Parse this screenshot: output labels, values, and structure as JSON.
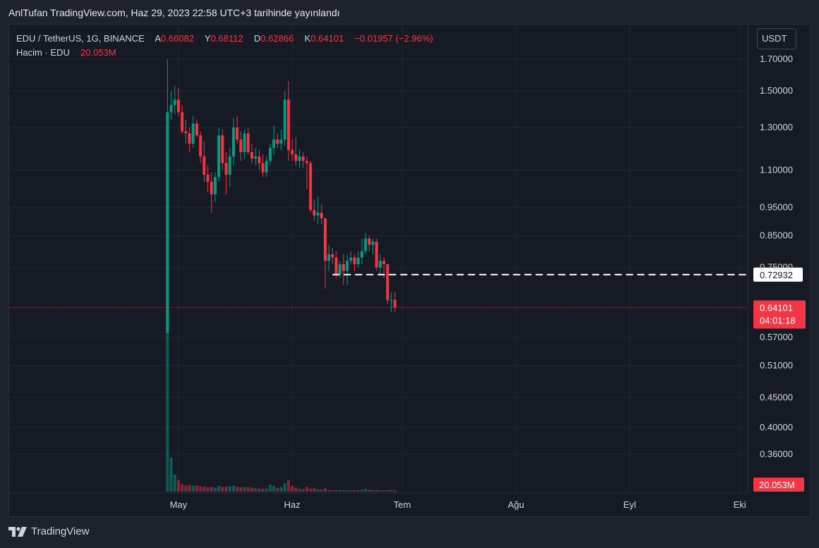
{
  "header": {
    "publish_line": "AnlTufan TradingView.com, Haz 29, 2023 22:58 UTC+3 tarihinde yayınlandı"
  },
  "legend": {
    "symbol": "EDU / TetherUS, 1G, BINANCE",
    "o_label": "A",
    "o_value": "0.66082",
    "h_label": "Y",
    "h_value": "0.68112",
    "l_label": "D",
    "l_value": "0.62866",
    "c_label": "K",
    "c_value": "0.64101",
    "change": "−0.01957 (−2.96%)",
    "volume_label": "Hacim · EDU",
    "volume_value": "20.053M"
  },
  "currency": "USDT",
  "footer": {
    "brand": "TradingView"
  },
  "colors": {
    "up": "#089981",
    "down": "#f23645",
    "background": "#161a25",
    "grid": "#232632",
    "text": "#d1d4dc"
  },
  "chart_data": {
    "type": "candlestick",
    "symbol": "EDU / TetherUS",
    "interval": "1G",
    "exchange": "BINANCE",
    "y_scale": "log",
    "y_ticks": [
      "1.70000",
      "1.50000",
      "1.30000",
      "1.10000",
      "0.95000",
      "0.85000",
      "0.75000",
      "0.57000",
      "0.51000",
      "0.45000",
      "0.40000",
      "0.36000"
    ],
    "x_ticks": [
      "May",
      "Haz",
      "Tem",
      "Ağu",
      "Eyl",
      "Eki"
    ],
    "x_tick_dates": [
      "2023-05-01",
      "2023-06-01",
      "2023-07-01",
      "2023-08-01",
      "2023-09-01",
      "2023-10-01"
    ],
    "horizontal_line": {
      "value": 0.72932,
      "label": "0.72932",
      "style": "dashed"
    },
    "last_price": {
      "value": 0.64101,
      "label": "0.64101",
      "countdown": "04:01:18"
    },
    "volume_last_label": "20.053M",
    "ohlcv": [
      {
        "date": "2023-04-28",
        "o": 0.58,
        "h": 1.7,
        "l": 0.58,
        "c": 1.38,
        "v": 1200
      },
      {
        "date": "2023-04-29",
        "o": 1.38,
        "h": 1.5,
        "l": 1.34,
        "c": 1.42,
        "v": 220
      },
      {
        "date": "2023-04-30",
        "o": 1.42,
        "h": 1.53,
        "l": 1.37,
        "c": 1.45,
        "v": 110
      },
      {
        "date": "2023-05-01",
        "o": 1.45,
        "h": 1.52,
        "l": 1.36,
        "c": 1.38,
        "v": 75
      },
      {
        "date": "2023-05-02",
        "o": 1.38,
        "h": 1.42,
        "l": 1.27,
        "c": 1.28,
        "v": 48
      },
      {
        "date": "2023-05-03",
        "o": 1.28,
        "h": 1.34,
        "l": 1.22,
        "c": 1.27,
        "v": 40
      },
      {
        "date": "2023-05-04",
        "o": 1.27,
        "h": 1.3,
        "l": 1.18,
        "c": 1.22,
        "v": 43
      },
      {
        "date": "2023-05-05",
        "o": 1.22,
        "h": 1.36,
        "l": 1.2,
        "c": 1.32,
        "v": 38
      },
      {
        "date": "2023-05-06",
        "o": 1.32,
        "h": 1.34,
        "l": 1.25,
        "c": 1.26,
        "v": 40
      },
      {
        "date": "2023-05-07",
        "o": 1.26,
        "h": 1.28,
        "l": 1.13,
        "c": 1.16,
        "v": 34
      },
      {
        "date": "2023-05-08",
        "o": 1.16,
        "h": 1.23,
        "l": 1.05,
        "c": 1.08,
        "v": 32
      },
      {
        "date": "2023-05-09",
        "o": 1.08,
        "h": 1.12,
        "l": 1.01,
        "c": 1.05,
        "v": 27
      },
      {
        "date": "2023-05-10",
        "o": 1.05,
        "h": 1.09,
        "l": 0.93,
        "c": 1.0,
        "v": 31
      },
      {
        "date": "2023-05-11",
        "o": 1.0,
        "h": 1.09,
        "l": 0.97,
        "c": 1.07,
        "v": 25
      },
      {
        "date": "2023-05-12",
        "o": 1.07,
        "h": 1.3,
        "l": 1.05,
        "c": 1.26,
        "v": 38
      },
      {
        "date": "2023-05-13",
        "o": 1.26,
        "h": 1.29,
        "l": 1.1,
        "c": 1.13,
        "v": 30
      },
      {
        "date": "2023-05-14",
        "o": 1.13,
        "h": 1.18,
        "l": 1.0,
        "c": 1.08,
        "v": 32
      },
      {
        "date": "2023-05-15",
        "o": 1.08,
        "h": 1.2,
        "l": 1.03,
        "c": 1.16,
        "v": 36
      },
      {
        "date": "2023-05-16",
        "o": 1.16,
        "h": 1.35,
        "l": 1.12,
        "c": 1.3,
        "v": 39
      },
      {
        "date": "2023-05-17",
        "o": 1.3,
        "h": 1.36,
        "l": 1.22,
        "c": 1.24,
        "v": 32
      },
      {
        "date": "2023-05-18",
        "o": 1.24,
        "h": 1.28,
        "l": 1.14,
        "c": 1.18,
        "v": 28
      },
      {
        "date": "2023-05-19",
        "o": 1.18,
        "h": 1.29,
        "l": 1.15,
        "c": 1.27,
        "v": 29
      },
      {
        "date": "2023-05-20",
        "o": 1.27,
        "h": 1.3,
        "l": 1.17,
        "c": 1.18,
        "v": 30
      },
      {
        "date": "2023-05-21",
        "o": 1.18,
        "h": 1.22,
        "l": 1.13,
        "c": 1.15,
        "v": 26
      },
      {
        "date": "2023-05-22",
        "o": 1.15,
        "h": 1.2,
        "l": 1.12,
        "c": 1.16,
        "v": 22
      },
      {
        "date": "2023-05-23",
        "o": 1.16,
        "h": 1.19,
        "l": 1.1,
        "c": 1.13,
        "v": 20
      },
      {
        "date": "2023-05-24",
        "o": 1.13,
        "h": 1.17,
        "l": 1.07,
        "c": 1.09,
        "v": 19
      },
      {
        "date": "2023-05-25",
        "o": 1.09,
        "h": 1.16,
        "l": 1.07,
        "c": 1.14,
        "v": 21
      },
      {
        "date": "2023-05-26",
        "o": 1.14,
        "h": 1.22,
        "l": 1.12,
        "c": 1.2,
        "v": 44
      },
      {
        "date": "2023-05-27",
        "o": 1.2,
        "h": 1.31,
        "l": 1.17,
        "c": 1.24,
        "v": 38
      },
      {
        "date": "2023-05-28",
        "o": 1.24,
        "h": 1.27,
        "l": 1.2,
        "c": 1.22,
        "v": 24
      },
      {
        "date": "2023-05-29",
        "o": 1.22,
        "h": 1.29,
        "l": 1.19,
        "c": 1.24,
        "v": 30
      },
      {
        "date": "2023-05-30",
        "o": 1.24,
        "h": 1.5,
        "l": 1.21,
        "c": 1.45,
        "v": 55
      },
      {
        "date": "2023-05-31",
        "o": 1.45,
        "h": 1.56,
        "l": 1.14,
        "c": 1.19,
        "v": 74
      },
      {
        "date": "2023-06-01",
        "o": 1.19,
        "h": 1.24,
        "l": 1.14,
        "c": 1.17,
        "v": 37
      },
      {
        "date": "2023-06-02",
        "o": 1.17,
        "h": 1.25,
        "l": 1.12,
        "c": 1.14,
        "v": 27
      },
      {
        "date": "2023-06-03",
        "o": 1.14,
        "h": 1.19,
        "l": 1.11,
        "c": 1.16,
        "v": 20
      },
      {
        "date": "2023-06-04",
        "o": 1.16,
        "h": 1.18,
        "l": 1.11,
        "c": 1.14,
        "v": 17
      },
      {
        "date": "2023-06-05",
        "o": 1.14,
        "h": 1.16,
        "l": 1.02,
        "c": 1.13,
        "v": 30
      },
      {
        "date": "2023-06-06",
        "o": 1.13,
        "h": 1.14,
        "l": 0.93,
        "c": 0.94,
        "v": 20
      },
      {
        "date": "2023-06-07",
        "o": 0.94,
        "h": 0.98,
        "l": 0.9,
        "c": 0.92,
        "v": 22
      },
      {
        "date": "2023-06-08",
        "o": 0.92,
        "h": 0.99,
        "l": 0.89,
        "c": 0.93,
        "v": 16
      },
      {
        "date": "2023-06-09",
        "o": 0.93,
        "h": 0.96,
        "l": 0.89,
        "c": 0.91,
        "v": 14
      },
      {
        "date": "2023-06-10",
        "o": 0.91,
        "h": 0.91,
        "l": 0.69,
        "c": 0.77,
        "v": 22
      },
      {
        "date": "2023-06-11",
        "o": 0.77,
        "h": 0.82,
        "l": 0.74,
        "c": 0.79,
        "v": 12
      },
      {
        "date": "2023-06-12",
        "o": 0.79,
        "h": 0.81,
        "l": 0.76,
        "c": 0.78,
        "v": 10
      },
      {
        "date": "2023-06-13",
        "o": 0.78,
        "h": 0.8,
        "l": 0.72,
        "c": 0.73,
        "v": 11
      },
      {
        "date": "2023-06-14",
        "o": 0.73,
        "h": 0.77,
        "l": 0.72,
        "c": 0.76,
        "v": 10
      },
      {
        "date": "2023-06-15",
        "o": 0.76,
        "h": 0.79,
        "l": 0.7,
        "c": 0.74,
        "v": 9
      },
      {
        "date": "2023-06-16",
        "o": 0.74,
        "h": 0.79,
        "l": 0.7,
        "c": 0.77,
        "v": 10
      },
      {
        "date": "2023-06-17",
        "o": 0.77,
        "h": 0.8,
        "l": 0.76,
        "c": 0.78,
        "v": 8
      },
      {
        "date": "2023-06-18",
        "o": 0.78,
        "h": 0.79,
        "l": 0.74,
        "c": 0.76,
        "v": 9
      },
      {
        "date": "2023-06-19",
        "o": 0.76,
        "h": 0.8,
        "l": 0.75,
        "c": 0.78,
        "v": 10
      },
      {
        "date": "2023-06-20",
        "o": 0.78,
        "h": 0.84,
        "l": 0.76,
        "c": 0.8,
        "v": 12
      },
      {
        "date": "2023-06-21",
        "o": 0.8,
        "h": 0.86,
        "l": 0.79,
        "c": 0.84,
        "v": 17
      },
      {
        "date": "2023-06-22",
        "o": 0.84,
        "h": 0.85,
        "l": 0.8,
        "c": 0.82,
        "v": 12
      },
      {
        "date": "2023-06-23",
        "o": 0.82,
        "h": 0.84,
        "l": 0.79,
        "c": 0.83,
        "v": 10
      },
      {
        "date": "2023-06-24",
        "o": 0.83,
        "h": 0.84,
        "l": 0.74,
        "c": 0.75,
        "v": 11
      },
      {
        "date": "2023-06-25",
        "o": 0.75,
        "h": 0.79,
        "l": 0.73,
        "c": 0.77,
        "v": 9
      },
      {
        "date": "2023-06-26",
        "o": 0.77,
        "h": 0.78,
        "l": 0.72,
        "c": 0.76,
        "v": 8
      },
      {
        "date": "2023-06-27",
        "o": 0.76,
        "h": 0.76,
        "l": 0.65,
        "c": 0.66,
        "v": 10
      },
      {
        "date": "2023-06-28",
        "o": 0.66,
        "h": 0.68,
        "l": 0.63,
        "c": 0.66,
        "v": 12
      },
      {
        "date": "2023-06-29",
        "o": 0.66082,
        "h": 0.68112,
        "l": 0.62866,
        "c": 0.64101,
        "v": 9
      }
    ]
  }
}
